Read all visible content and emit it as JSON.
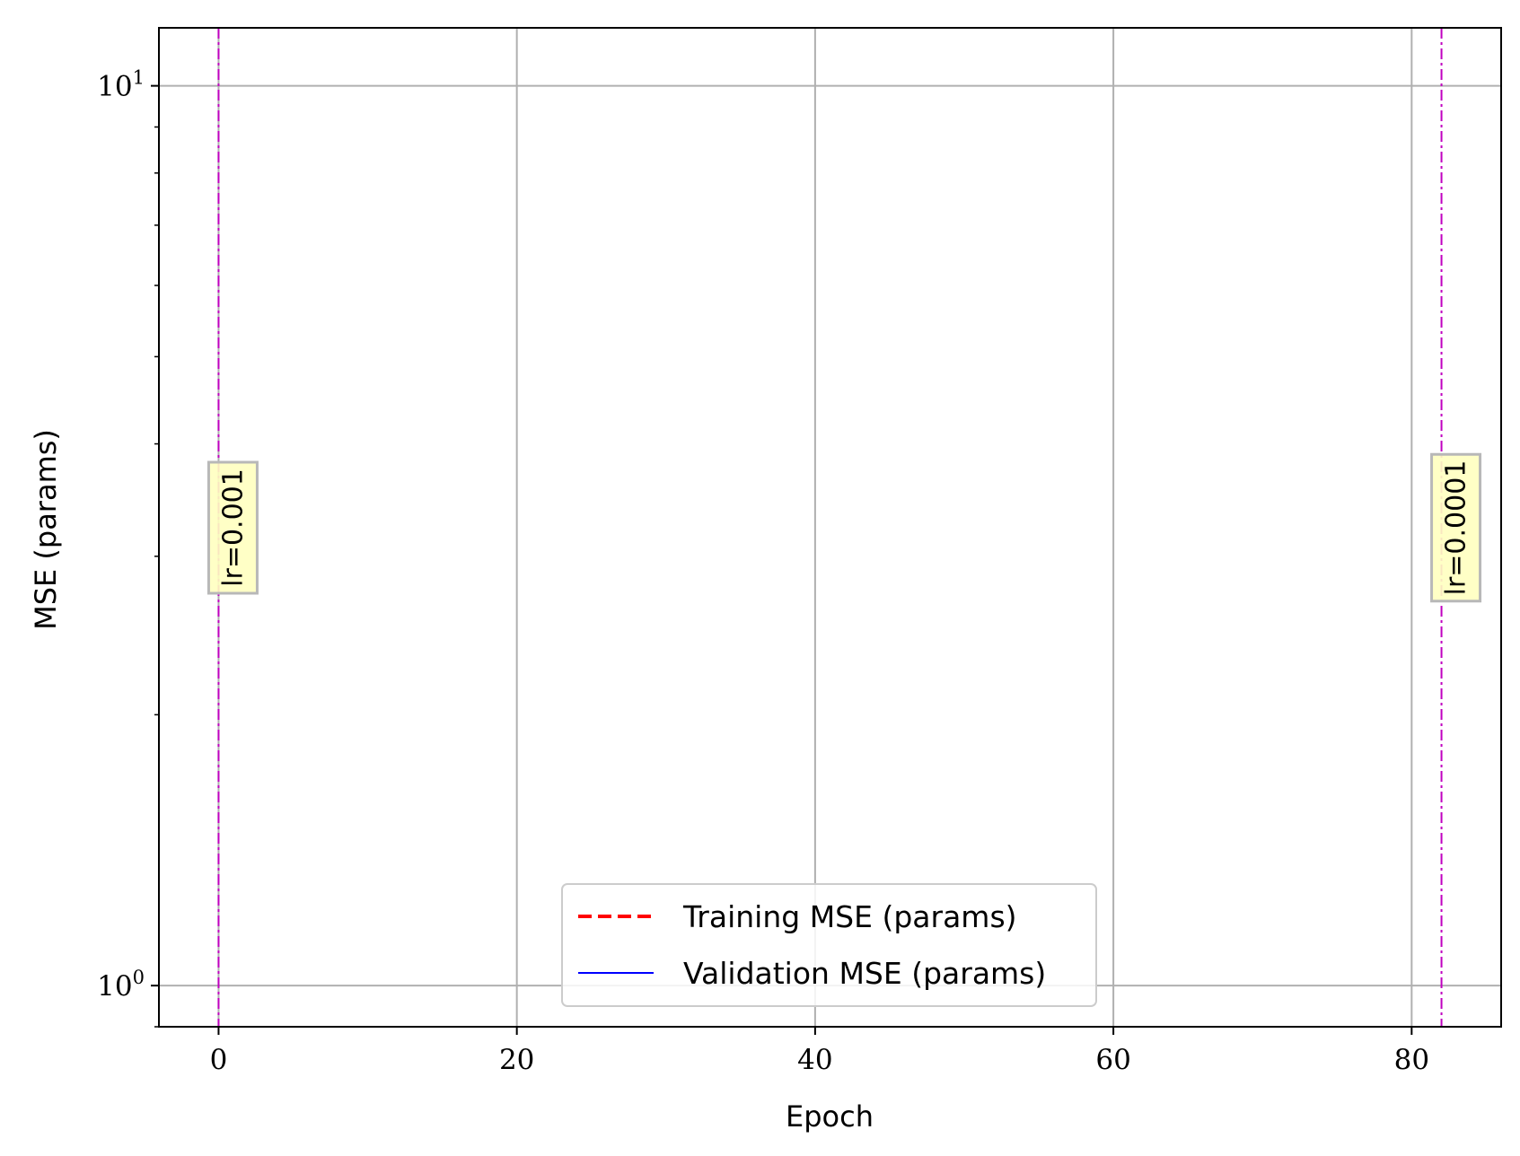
{
  "chart_data": {
    "type": "line",
    "title": "",
    "xlabel": "Epoch",
    "ylabel": "MSE (params)",
    "xlim": [
      -4,
      86
    ],
    "ylim": [
      0.9,
      11.6
    ],
    "yscale": "log",
    "grid": true,
    "x_ticks": [
      0,
      20,
      40,
      60,
      80
    ],
    "x_tick_labels": [
      "0",
      "20",
      "40",
      "60",
      "80"
    ],
    "y_ticks": [
      1,
      10
    ],
    "y_tick_labels": [
      {
        "base": "10",
        "exp": "0"
      },
      {
        "base": "10",
        "exp": "1"
      }
    ],
    "series": [
      {
        "name": "Training MSE (params)",
        "color": "#ff0000",
        "style": "dashed",
        "x": [],
        "y": []
      },
      {
        "name": "Validation MSE (params)",
        "color": "#0000ff",
        "style": "solid",
        "x": [],
        "y": []
      }
    ],
    "vlines": [
      {
        "x": 0,
        "label": "lr=0.001",
        "color": "#c000c0",
        "style": "dashdot"
      },
      {
        "x": 82,
        "label": "lr=0.0001",
        "color": "#c000c0",
        "style": "dashdot"
      }
    ],
    "legend_position": "bottom-center"
  }
}
